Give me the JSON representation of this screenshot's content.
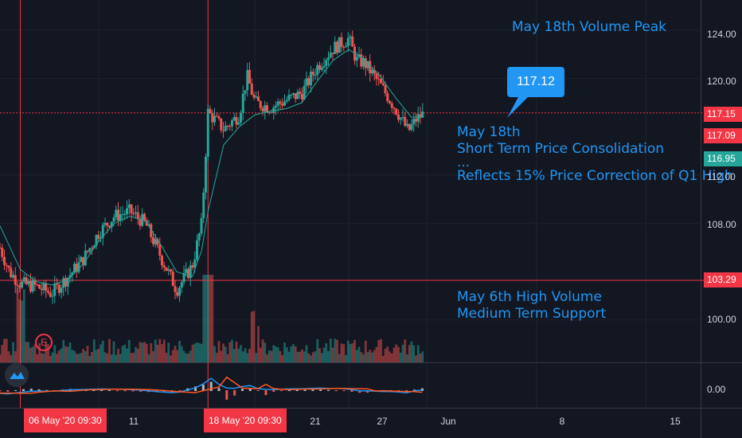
{
  "chart_data": {
    "type": "candlestick",
    "price_axis": {
      "ticks": [
        {
          "value": 124,
          "label": "124.00"
        },
        {
          "value": 120,
          "label": "120.00"
        },
        {
          "value": 112,
          "label": "112.00"
        },
        {
          "value": 108,
          "label": "108.00"
        },
        {
          "value": 100,
          "label": "100.00"
        }
      ],
      "range": [
        96.5,
        126.5
      ]
    },
    "price_tags": [
      {
        "value": 117.15,
        "label": "117.15",
        "color": "#f23645"
      },
      {
        "value": 117.09,
        "label": "117.09",
        "color": "#f23645"
      },
      {
        "value": 116.95,
        "label": "116.95",
        "color": "#26a69a"
      },
      {
        "value": 103.29,
        "label": "103.29",
        "color": "#f23645"
      }
    ],
    "macd_axis": {
      "label": "0.00"
    },
    "x_axis": {
      "ticks": [
        {
          "label": "11",
          "day": 11
        },
        {
          "label": "21",
          "day": 21
        },
        {
          "label": "27",
          "day": 27
        },
        {
          "label": "Jun",
          "day": 32
        },
        {
          "label": "8",
          "day": 39
        },
        {
          "label": "15",
          "day": 46
        }
      ],
      "range_days": [
        4.7,
        49.5
      ],
      "highlight_labels": [
        {
          "label": "06 May '20  09:30",
          "day": 6
        },
        {
          "label": "18 May '20  09:30",
          "day": 18
        }
      ]
    },
    "horizontal_lines": [
      {
        "value": 117.15,
        "style": "dotted",
        "color": "#f23645"
      },
      {
        "value": 103.29,
        "style": "solid",
        "color": "#f23645"
      }
    ],
    "vertical_lines": [
      {
        "day": 6
      },
      {
        "day": 18
      }
    ],
    "price_path": [
      [
        4.7,
        106.0
      ],
      [
        5.3,
        104.0
      ],
      [
        6.0,
        103.0
      ],
      [
        7.0,
        102.8
      ],
      [
        8.0,
        102.2
      ],
      [
        9.0,
        103.5
      ],
      [
        10.0,
        105.0
      ],
      [
        11.0,
        107.2
      ],
      [
        12.0,
        108.6
      ],
      [
        13.0,
        109.0
      ],
      [
        14.0,
        108.0
      ],
      [
        15.0,
        105.2
      ],
      [
        16.0,
        102.5
      ],
      [
        17.0,
        104.5
      ],
      [
        17.6,
        108.0
      ],
      [
        18.0,
        117.2
      ],
      [
        19.0,
        115.8
      ],
      [
        20.0,
        117.0
      ],
      [
        20.5,
        120.2
      ],
      [
        21.0,
        118.0
      ],
      [
        22.0,
        117.6
      ],
      [
        23.0,
        118.2
      ],
      [
        24.0,
        118.8
      ],
      [
        25.0,
        121.0
      ],
      [
        26.0,
        122.5
      ],
      [
        27.0,
        123.3
      ],
      [
        27.5,
        121.5
      ],
      [
        28.0,
        121.3
      ],
      [
        29.0,
        119.5
      ],
      [
        30.0,
        117.5
      ],
      [
        30.8,
        115.6
      ],
      [
        31.3,
        116.6
      ],
      [
        31.8,
        117.1
      ]
    ],
    "ma_path": [
      [
        4.7,
        107.8
      ],
      [
        6.0,
        104.2
      ],
      [
        7.0,
        103.2
      ],
      [
        8.0,
        102.9
      ],
      [
        9.0,
        103.3
      ],
      [
        10.0,
        104.6
      ],
      [
        11.0,
        106.5
      ],
      [
        12.0,
        108.0
      ],
      [
        13.0,
        108.6
      ],
      [
        14.0,
        108.2
      ],
      [
        15.0,
        106.2
      ],
      [
        16.0,
        104.0
      ],
      [
        17.0,
        103.6
      ],
      [
        17.6,
        105.8
      ],
      [
        18.0,
        109.0
      ],
      [
        19.0,
        114.5
      ],
      [
        20.0,
        116.0
      ],
      [
        21.0,
        117.0
      ],
      [
        22.0,
        117.3
      ],
      [
        23.0,
        117.5
      ],
      [
        24.0,
        118.0
      ],
      [
        25.0,
        119.8
      ],
      [
        26.0,
        121.5
      ],
      [
        27.0,
        122.4
      ],
      [
        28.0,
        121.6
      ],
      [
        29.0,
        120.2
      ],
      [
        30.0,
        118.4
      ],
      [
        31.0,
        116.8
      ],
      [
        31.8,
        116.8
      ]
    ],
    "annotations": [
      {
        "lines": [
          "May 18th Volume Peak"
        ]
      },
      {
        "lines": [
          "May 18th",
          "Short Term Price Consolidation",
          "...",
          "Reflects 15% Price Correction of Q1 High"
        ]
      },
      {
        "lines": [
          "May 6th High Volume",
          "Medium Term Support"
        ]
      }
    ],
    "callout": {
      "label": "117.12",
      "value": 117.12
    },
    "event_badge": "E",
    "colors": {
      "up": "#26a69a",
      "down": "#ef5350",
      "ma": "#26a69a",
      "level": "#f23645",
      "text": "#2196f3",
      "macd": "#2196f3",
      "signal": "#ff5722"
    }
  }
}
